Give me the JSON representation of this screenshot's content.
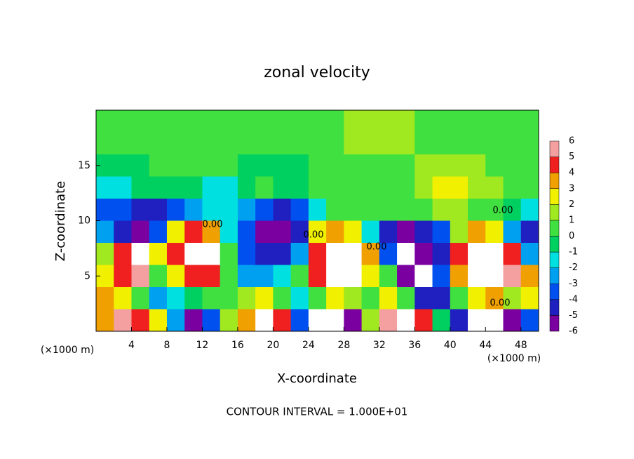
{
  "chart_data": {
    "type": "heatmap",
    "title": "zonal velocity",
    "x_label": "X-coordinate",
    "y_label": "Z-coordinate",
    "x_unit_labels": [
      "(×1000 m)",
      "(×1000 m)"
    ],
    "footer": "CONTOUR INTERVAL = 1.000E+01",
    "contour_labels": [
      "0.00",
      "0.00",
      "0.00",
      "0.00",
      "0.00"
    ],
    "xlim": [
      0,
      50
    ],
    "ylim": [
      0,
      20
    ],
    "xticks": [
      4,
      8,
      12,
      16,
      20,
      24,
      28,
      32,
      36,
      40,
      44,
      48
    ],
    "yticks": [
      5,
      10,
      15
    ],
    "x": [
      1,
      3,
      5,
      7,
      9,
      11,
      13,
      15,
      17,
      19,
      21,
      23,
      25,
      27,
      29,
      31,
      33,
      35,
      37,
      39,
      41,
      43,
      45,
      47,
      49
    ],
    "y": [
      19,
      17,
      15,
      13,
      11,
      9,
      7,
      5,
      3,
      1
    ],
    "values": [
      [
        0.3,
        0.3,
        0.4,
        0.4,
        0.5,
        0.5,
        0.6,
        0.5,
        0.5,
        0.5,
        0.6,
        0.6,
        0.8,
        1,
        1.2,
        1.5,
        1.5,
        1.3,
        1,
        0.8,
        0.6,
        0.5,
        0.4,
        0.4,
        0.3
      ],
      [
        0.2,
        0.3,
        0.3,
        0.3,
        0.2,
        0.2,
        0.3,
        0.3,
        0.4,
        0.5,
        0.6,
        0.7,
        0.8,
        1,
        1.2,
        1.5,
        1.4,
        1.2,
        1,
        0.8,
        0.6,
        0.5,
        0.4,
        0.3,
        0.2
      ],
      [
        -0.5,
        -0.3,
        0,
        0.2,
        0.3,
        0.3,
        0.4,
        0.2,
        0,
        -0.3,
        -0.5,
        -0.5,
        0.3,
        0.6,
        0.8,
        1,
        1,
        1,
        1.2,
        1.5,
        1.5,
        1.2,
        0.8,
        0.5,
        0.3
      ],
      [
        -1.5,
        -1.2,
        -0.8,
        -0.5,
        -0.5,
        -0.8,
        -1,
        -1,
        -0.5,
        0.3,
        -0.5,
        -0.8,
        0.3,
        0.5,
        0.8,
        0.8,
        1,
        1,
        1.5,
        2.5,
        2.5,
        2,
        1.5,
        1,
        0.8
      ],
      [
        -3,
        -3.5,
        -4,
        -4.5,
        -3,
        -2,
        -1.5,
        -1.2,
        -2,
        -3.5,
        -4,
        -3,
        -1,
        0.5,
        0.6,
        0.6,
        0.5,
        0.8,
        1,
        1.5,
        1.5,
        1,
        0.5,
        -0.5,
        -1
      ],
      [
        -2,
        -4,
        -5,
        -3,
        3,
        5,
        4,
        -1,
        -3,
        -5,
        -5,
        -4,
        3,
        4,
        3,
        -1,
        -4,
        -5,
        -4,
        -3,
        2,
        4,
        3,
        -2,
        -4
      ],
      [
        2,
        5,
        7,
        3,
        5,
        7,
        7,
        1,
        -3,
        -4,
        -4,
        -2,
        5,
        7,
        7,
        4,
        -3,
        7,
        -6,
        -4,
        5,
        7,
        7,
        5,
        -2
      ],
      [
        3,
        5,
        6,
        1,
        3,
        5,
        5,
        1,
        -2,
        -2,
        -1,
        1,
        5,
        8,
        7,
        3,
        1,
        -5,
        -7,
        -3,
        4,
        7,
        8,
        6,
        4
      ],
      [
        4,
        3,
        1,
        -2,
        -1,
        0,
        0.5,
        1,
        2,
        3,
        1,
        -1,
        1,
        3,
        2,
        1,
        3,
        1,
        -4,
        -4,
        1,
        3,
        4,
        2,
        3
      ],
      [
        4,
        6,
        5,
        3,
        -2,
        -6,
        -3,
        2,
        4,
        7,
        5,
        -3,
        -7,
        -8,
        -5,
        2,
        6,
        7,
        5,
        0,
        -4,
        -7,
        -7,
        -5,
        -3
      ]
    ],
    "colorbar": {
      "levels": [
        -6,
        -5,
        -4,
        -3,
        -2,
        -1,
        0,
        1,
        2,
        3,
        4,
        5,
        6
      ],
      "colors": [
        "#7a00a0",
        "#2020c0",
        "#0050f0",
        "#00a0f0",
        "#00e0e0",
        "#00d060",
        "#40e040",
        "#a0e820",
        "#f0f000",
        "#f0a000",
        "#f02020",
        "#f4a0a0"
      ]
    }
  }
}
